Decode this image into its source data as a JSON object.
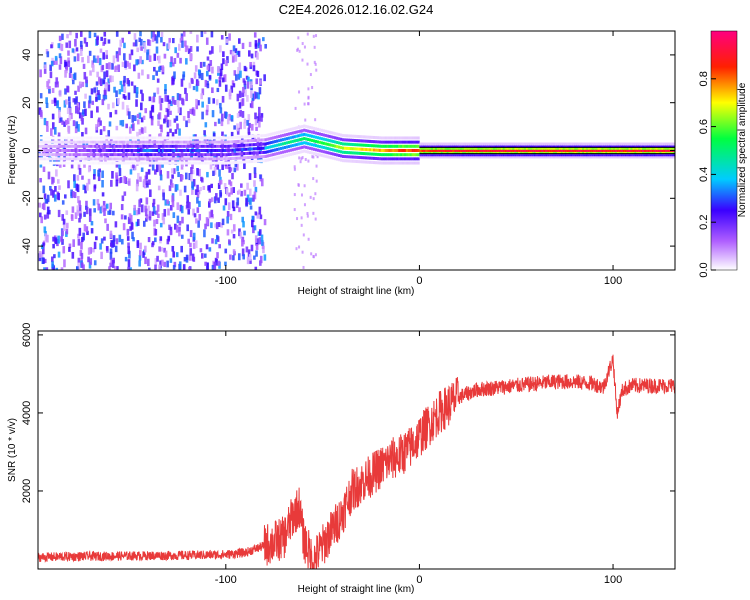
{
  "title": "C2E4.2026.012.16.02.G24",
  "colors": {
    "snr_line": "#e83a3a",
    "background": "#ffffff",
    "zero_line": "#000000"
  },
  "chart_data": [
    {
      "type": "heatmap",
      "panel": "top",
      "xlabel": "Height of straight line (km)",
      "ylabel": "Frequency (Hz)",
      "xlim": [
        -197,
        132
      ],
      "ylim": [
        -50,
        50
      ],
      "xticks": [
        -100,
        0,
        100
      ],
      "xtick_labels": [
        "-100",
        "0",
        "100"
      ],
      "yticks": [
        -40,
        -20,
        0,
        20,
        40
      ],
      "ytick_labels": [
        "-40",
        "-20",
        "0",
        "20",
        "40"
      ],
      "grid": false,
      "colorbar": {
        "label": "Normalized spectral amplitude",
        "range": [
          0,
          1
        ],
        "ticks": [
          0.0,
          0.2,
          0.4,
          0.6,
          0.8
        ],
        "tick_labels": [
          "0.0",
          "0.2",
          "0.4",
          "0.6",
          "0.8"
        ],
        "colormap": [
          "#ffffff",
          "#7a00ff",
          "#0000ff",
          "#00ffff",
          "#00ff00",
          "#ffff00",
          "#ff0000",
          "#ff0080"
        ]
      },
      "ridge": [
        {
          "x": -150,
          "y": 0,
          "amp": 0.3
        },
        {
          "x": -140,
          "y": 0,
          "amp": 0.35
        },
        {
          "x": -100,
          "y": 0,
          "amp": 0.3
        },
        {
          "x": -80,
          "y": 1,
          "amp": 0.4
        },
        {
          "x": -70,
          "y": 3,
          "amp": 0.5
        },
        {
          "x": -60,
          "y": 5,
          "amp": 0.55
        },
        {
          "x": -50,
          "y": 3,
          "amp": 0.6
        },
        {
          "x": -40,
          "y": 1,
          "amp": 0.7
        },
        {
          "x": -20,
          "y": 0,
          "amp": 0.8
        },
        {
          "x": 0,
          "y": 0,
          "amp": 0.9
        },
        {
          "x": 50,
          "y": 0,
          "amp": 0.95
        },
        {
          "x": 100,
          "y": 0,
          "amp": 0.95
        },
        {
          "x": 132,
          "y": 0,
          "amp": 0.95
        }
      ],
      "noise_region": [
        -197,
        -80
      ]
    },
    {
      "type": "line",
      "panel": "bottom",
      "xlabel": "Height of straight line (km)",
      "ylabel": "SNR (10 * v/v)",
      "xlim": [
        -197,
        132
      ],
      "ylim": [
        0,
        6100
      ],
      "xticks": [
        -100,
        0,
        100
      ],
      "xtick_labels": [
        "-100",
        "0",
        "100"
      ],
      "yticks": [
        2000,
        4000,
        6000
      ],
      "ytick_labels": [
        "2000",
        "4000",
        "6000"
      ],
      "grid": false,
      "series": [
        {
          "x": [
            -197,
            -180,
            -160,
            -140,
            -120,
            -100,
            -90,
            -80,
            -75,
            -70,
            -65,
            -62,
            -60,
            -55,
            -50,
            -45,
            -40,
            -35,
            -30,
            -25,
            -20,
            -15,
            -10,
            -5,
            0,
            5,
            10,
            20,
            30,
            40,
            50,
            60,
            70,
            80,
            90,
            95,
            100,
            102,
            105,
            110,
            120,
            132
          ],
          "y": [
            300,
            320,
            330,
            340,
            350,
            370,
            420,
            600,
            700,
            800,
            1400,
            1600,
            800,
            200,
            600,
            1000,
            1400,
            2000,
            2200,
            2400,
            2600,
            2800,
            2900,
            3100,
            3400,
            3700,
            4000,
            4400,
            4600,
            4650,
            4700,
            4750,
            4800,
            4800,
            4750,
            4650,
            5400,
            4000,
            4600,
            4700,
            4700,
            4700
          ]
        }
      ]
    }
  ]
}
